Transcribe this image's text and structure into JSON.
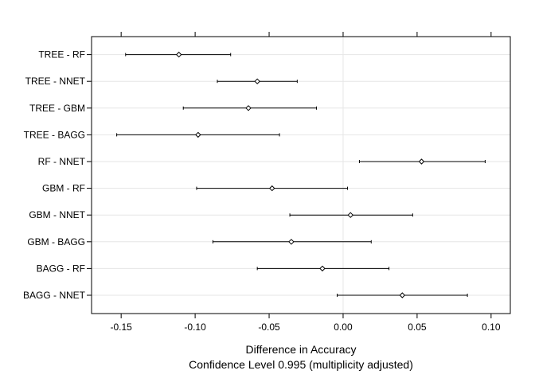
{
  "chart_data": {
    "type": "dotplot-ci",
    "categories": [
      "TREE - RF",
      "TREE - NNET",
      "TREE - GBM",
      "TREE - BAGG",
      "RF - NNET",
      "GBM - RF",
      "GBM - NNET",
      "GBM - BAGG",
      "BAGG - RF",
      "BAGG - NNET"
    ],
    "estimates": [
      -0.111,
      -0.058,
      -0.064,
      -0.098,
      0.053,
      -0.048,
      0.005,
      -0.035,
      -0.014,
      0.04
    ],
    "lower": [
      -0.147,
      -0.085,
      -0.108,
      -0.153,
      0.011,
      -0.099,
      -0.036,
      -0.088,
      -0.058,
      -0.004
    ],
    "upper": [
      -0.076,
      -0.031,
      -0.018,
      -0.043,
      0.096,
      0.003,
      0.047,
      0.019,
      0.031,
      0.084
    ],
    "xlim": [
      -0.17,
      0.113
    ],
    "xticks": [
      -0.15,
      -0.1,
      -0.05,
      0.0,
      0.05,
      0.1
    ],
    "xtick_labels": [
      "-0.15",
      "-0.10",
      "-0.05",
      "0.00",
      "0.05",
      "0.10"
    ],
    "reference_line": 0,
    "xlabel": "Difference in Accuracy",
    "xlabel_sub": "Confidence Level 0.995  (multiplicity adjusted)",
    "grid": true
  }
}
